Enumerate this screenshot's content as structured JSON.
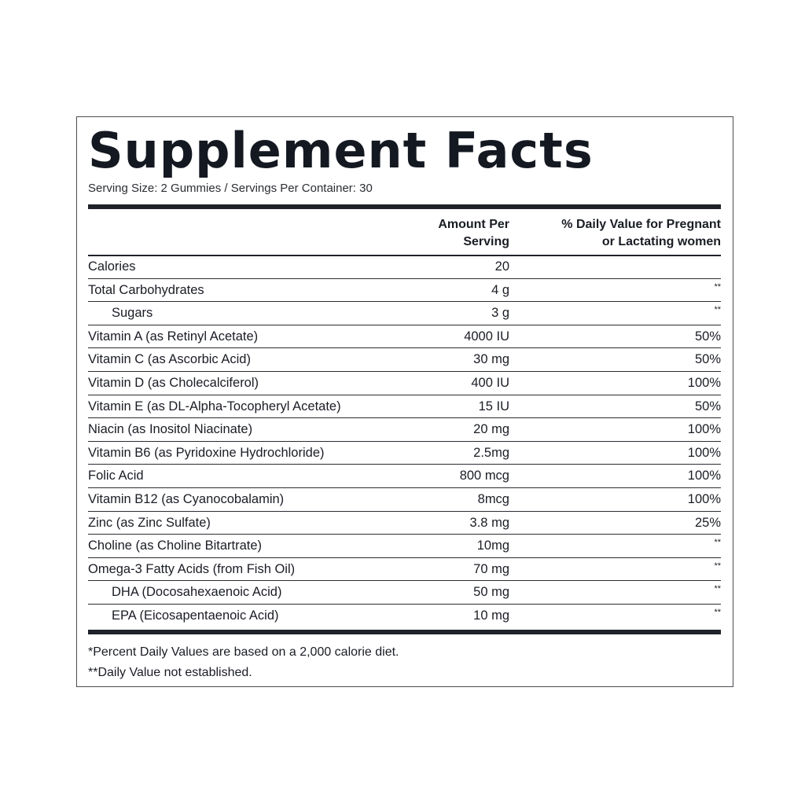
{
  "label": {
    "title": "Supplement Facts",
    "serving_line": "Serving Size: 2 Gummies / Servings Per Container: 30",
    "header_amount_line1": "Amount Per",
    "header_amount_line2": "Serving",
    "header_dv_line1": "% Daily Value for Pregnant",
    "header_dv_line2": "or Lactating women"
  },
  "rows": [
    {
      "name": "Calories",
      "amount": "20",
      "dv": "",
      "indent": false
    },
    {
      "name": "Total Carbohydrates",
      "amount": "4 g",
      "dv": "**",
      "indent": false
    },
    {
      "name": "Sugars",
      "amount": "3 g",
      "dv": "**",
      "indent": true
    },
    {
      "name": "Vitamin A (as Retinyl Acetate)",
      "amount": "4000 IU",
      "dv": "50%",
      "indent": false
    },
    {
      "name": "Vitamin C (as Ascorbic Acid)",
      "amount": "30 mg",
      "dv": "50%",
      "indent": false
    },
    {
      "name": "Vitamin D (as Cholecalciferol)",
      "amount": "400 IU",
      "dv": "100%",
      "indent": false
    },
    {
      "name": "Vitamin E (as DL-Alpha-Tocopheryl Acetate)",
      "amount": "15 IU",
      "dv": "50%",
      "indent": false
    },
    {
      "name": "Niacin (as Inositol Niacinate)",
      "amount": "20 mg",
      "dv": "100%",
      "indent": false
    },
    {
      "name": "Vitamin B6 (as Pyridoxine Hydrochloride)",
      "amount": "2.5mg",
      "dv": "100%",
      "indent": false
    },
    {
      "name": "Folic Acid",
      "amount": "800 mcg",
      "dv": "100%",
      "indent": false
    },
    {
      "name": "Vitamin B12 (as Cyanocobalamin)",
      "amount": "8mcg",
      "dv": "100%",
      "indent": false
    },
    {
      "name": "Zinc (as Zinc Sulfate)",
      "amount": "3.8 mg",
      "dv": "25%",
      "indent": false
    },
    {
      "name": "Choline (as Choline Bitartrate)",
      "amount": "10mg",
      "dv": "**",
      "indent": false
    },
    {
      "name": "Omega-3 Fatty Acids (from Fish Oil)",
      "amount": "70 mg",
      "dv": "**",
      "indent": false
    },
    {
      "name": "DHA (Docosahexaenoic Acid)",
      "amount": "50 mg",
      "dv": "**",
      "indent": true
    },
    {
      "name": "EPA (Eicosapentaenoic Acid)",
      "amount": "10 mg",
      "dv": "**",
      "indent": true
    }
  ],
  "footnotes": {
    "line1": "*Percent Daily Values are based on a 2,000 calorie diet.",
    "line2": "**Daily Value not established."
  }
}
